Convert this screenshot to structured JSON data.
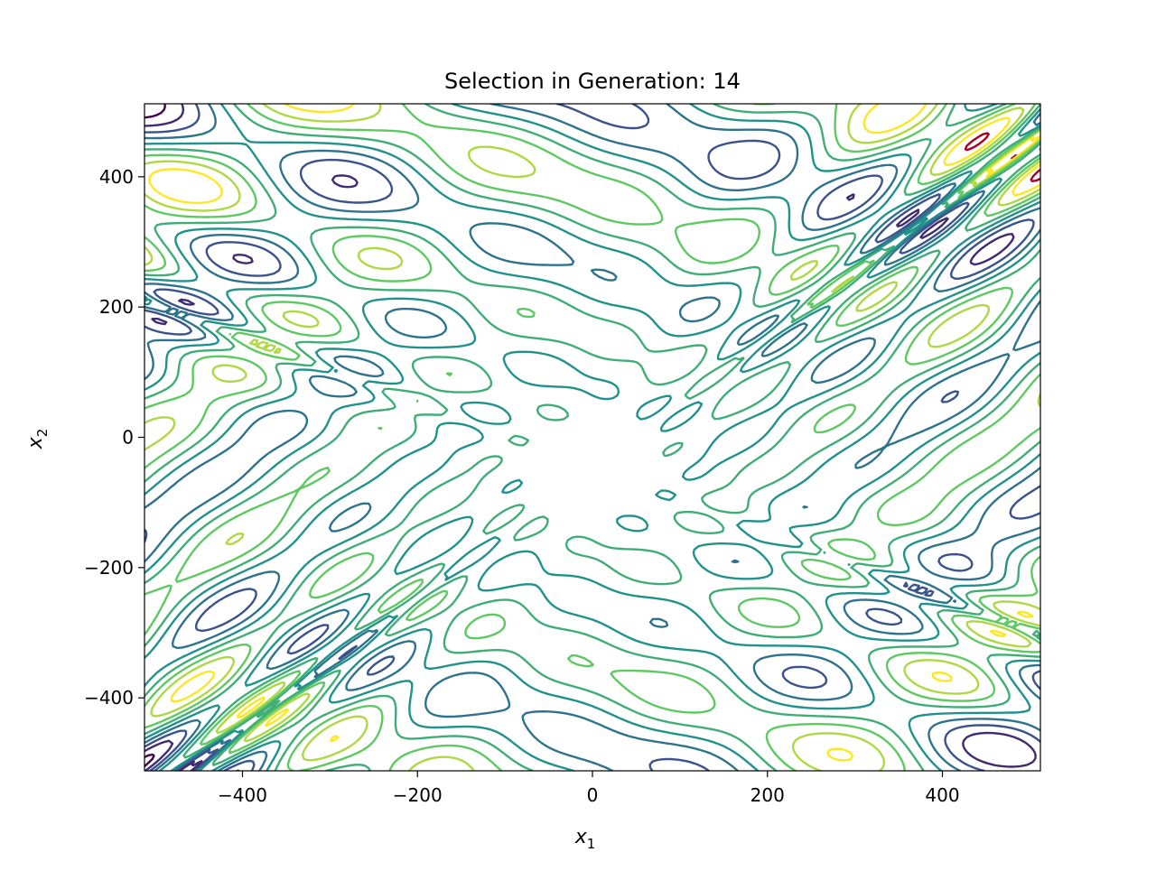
{
  "chart_data": {
    "type": "contour",
    "title": "Selection in Generation: 14",
    "xlabel": "x",
    "xlabel_subscript": "1",
    "ylabel": "x",
    "ylabel_subscript": "2",
    "xlim": [
      -512,
      512
    ],
    "ylim": [
      -512,
      512
    ],
    "x_ticks": [
      -400,
      -200,
      0,
      200,
      400
    ],
    "y_ticks": [
      -400,
      -200,
      0,
      200,
      400
    ],
    "x_tick_labels": [
      "−400",
      "−200",
      "0",
      "200",
      "400"
    ],
    "y_tick_labels": [
      "−400",
      "−200",
      "0",
      "200",
      "400"
    ],
    "grid": false,
    "legend": "none",
    "colormap": "viridis",
    "colormap_stops": [
      "#440154",
      "#3b528b",
      "#21918c",
      "#5ec962",
      "#fde725"
    ],
    "extreme_color": "#a50026",
    "surface": "eggholder",
    "contour_levels": [
      -900,
      -700,
      -500,
      -300,
      -100,
      100,
      300,
      500,
      700,
      900
    ]
  }
}
